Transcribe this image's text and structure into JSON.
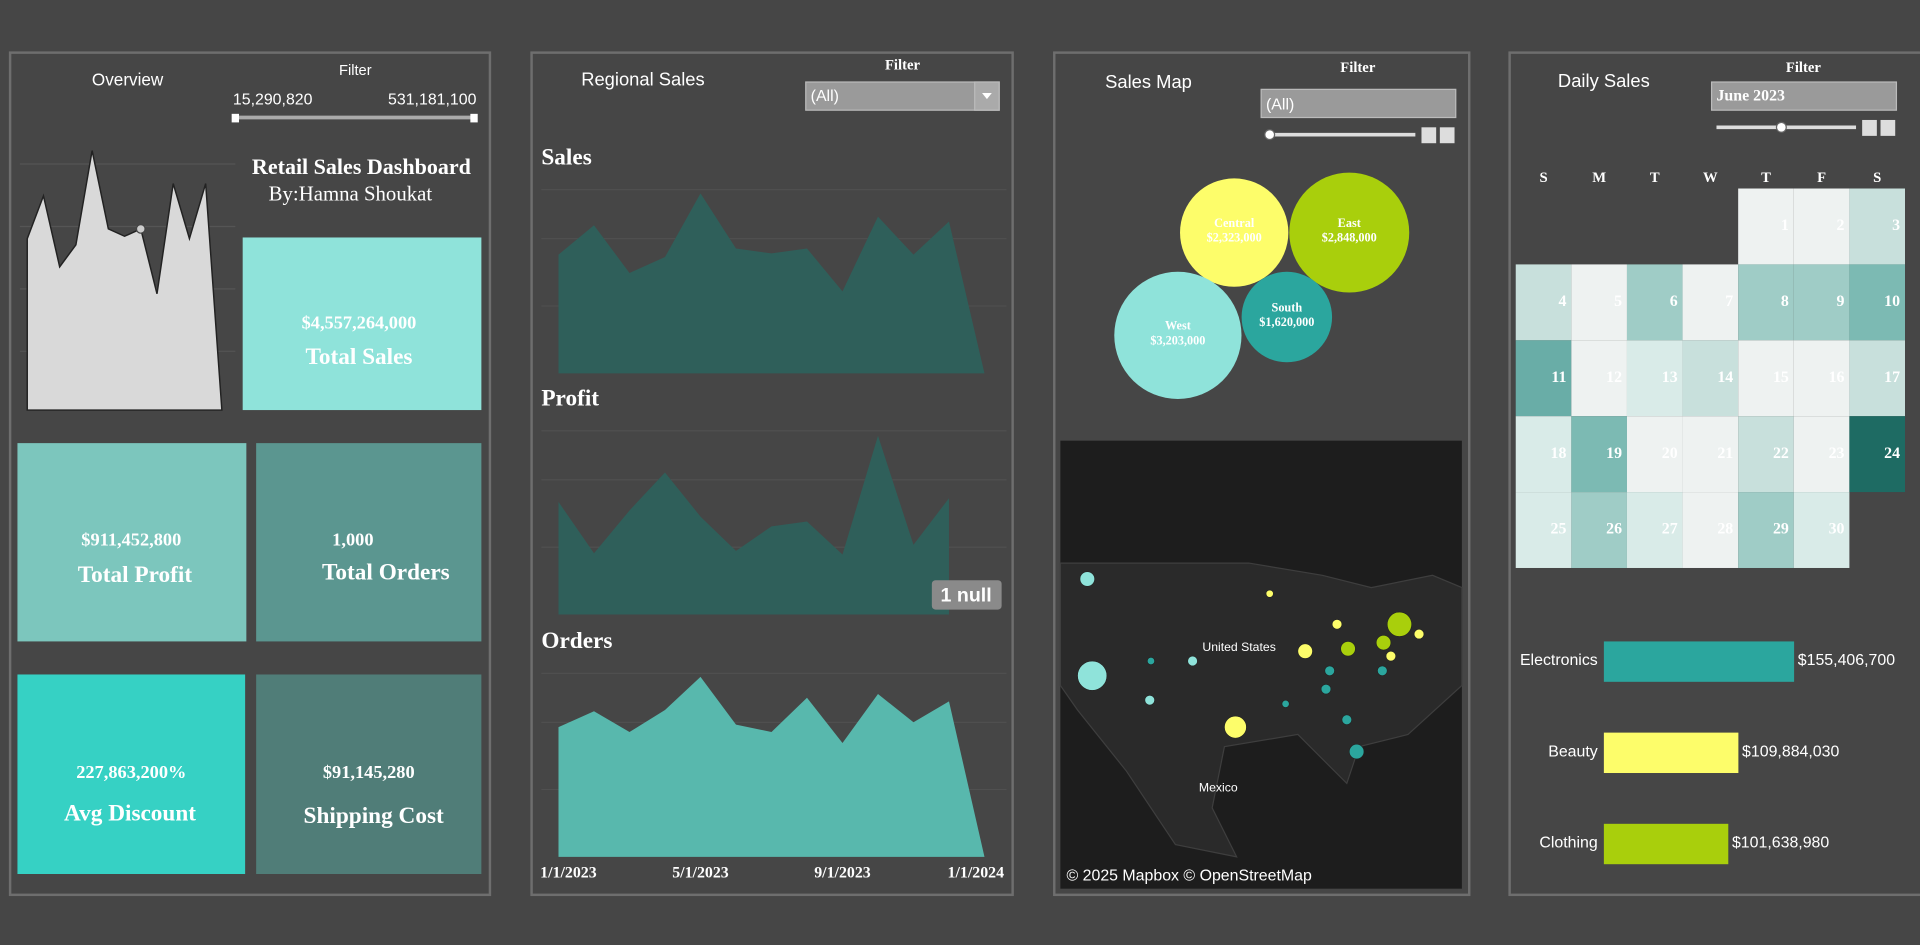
{
  "overview": {
    "title": "Overview",
    "filter_label": "Filter",
    "filter_min": "15,290,820",
    "filter_max": "531,181,100",
    "trend": [
      140,
      175,
      117,
      135,
      212,
      148,
      142,
      148,
      95,
      185,
      140,
      185,
      0
    ],
    "dashboard_title": "Retail Sales Dashboard",
    "author": "By:Hamna Shoukat",
    "kpis": [
      {
        "value": "$4,557,264,000",
        "label": "Total Sales",
        "color": "#8fe3da"
      },
      {
        "value": "$911,452,800",
        "label": "Total Profit",
        "color": "#7cc6bd"
      },
      {
        "value": "1,000",
        "label": "Total Orders",
        "color": "#5b9690"
      },
      {
        "value": "227,863,200%",
        "label": "Avg Discount",
        "color": "#36d1c4"
      },
      {
        "value": "$91,145,280",
        "label": "Shipping Cost",
        "color": "#507d78"
      }
    ]
  },
  "regional_sales": {
    "title": "Regional Sales",
    "filter_label": "Filter",
    "filter_value": "(All)",
    "categories": [
      "1/1/2023",
      null,
      null,
      null,
      "5/1/2023",
      null,
      null,
      null,
      "9/1/2023",
      null,
      null,
      null,
      "1/1/2024"
    ],
    "charts": [
      {
        "name": "Sales",
        "color": "#2f5f5a",
        "values": [
          97,
          121,
          82,
          95,
          147,
          102,
          98,
          102,
          67,
          128,
          97,
          124,
          0
        ]
      },
      {
        "name": "Profit",
        "color": "#2f5f5a",
        "values": [
          92,
          50,
          85,
          116,
          80,
          52,
          72,
          76,
          49,
          146,
          57,
          95,
          null
        ],
        "null_label": "1 null"
      },
      {
        "name": "Orders",
        "color": "#58b8ad",
        "values": [
          106,
          119,
          102,
          120,
          147,
          108,
          102,
          130,
          93,
          133,
          110,
          127,
          0
        ]
      }
    ]
  },
  "sales_map": {
    "title": "Sales Map",
    "filter_label": "Filter",
    "filter_value": "(All)",
    "regions": [
      {
        "name": "Central",
        "value": 2323000,
        "value_label": "$2,323,000",
        "color": "#fdfd6a"
      },
      {
        "name": "East",
        "value": 2848000,
        "value_label": "$2,848,000",
        "color": "#a9cf0c"
      },
      {
        "name": "West",
        "value": 3203000,
        "value_label": "$3,203,000",
        "color": "#8fe3da"
      },
      {
        "name": "South",
        "value": 1620000,
        "value_label": "$1,620,000",
        "color": "#2ba69e"
      }
    ],
    "map_labels": [
      "United States",
      "Mexico"
    ],
    "attribution": "© 2025 Mapbox © OpenStreetMap"
  },
  "daily_sales": {
    "title": "Daily Sales",
    "filter_label": "Filter",
    "month": "June 2023",
    "weekdays": [
      "S",
      "M",
      "T",
      "W",
      "T",
      "F",
      "S"
    ],
    "days": [
      {
        "day": 1,
        "color": "#eef2f1"
      },
      {
        "day": 2,
        "color": "#eef2f1"
      },
      {
        "day": 3,
        "color": "#c8e0dc"
      },
      {
        "day": 4,
        "color": "#c8e0dc"
      },
      {
        "day": 5,
        "color": "#eef2f1"
      },
      {
        "day": 6,
        "color": "#9fccc6"
      },
      {
        "day": 7,
        "color": "#eef2f1"
      },
      {
        "day": 8,
        "color": "#9fccc6"
      },
      {
        "day": 9,
        "color": "#9fccc6"
      },
      {
        "day": 10,
        "color": "#7cbab3"
      },
      {
        "day": 11,
        "color": "#69ada7"
      },
      {
        "day": 12,
        "color": "#eef2f1"
      },
      {
        "day": 13,
        "color": "#d9ebe8"
      },
      {
        "day": 14,
        "color": "#c8e0dc"
      },
      {
        "day": 15,
        "color": "#eef2f1"
      },
      {
        "day": 16,
        "color": "#eef2f1"
      },
      {
        "day": 17,
        "color": "#c8e0dc"
      },
      {
        "day": 18,
        "color": "#d9ebe8"
      },
      {
        "day": 19,
        "color": "#7cbab3"
      },
      {
        "day": 20,
        "color": "#eef2f1"
      },
      {
        "day": 21,
        "color": "#eef2f1"
      },
      {
        "day": 22,
        "color": "#c8e0dc"
      },
      {
        "day": 23,
        "color": "#eef2f1"
      },
      {
        "day": 24,
        "color": "#1e6b63"
      },
      {
        "day": 25,
        "color": "#d9ebe8"
      },
      {
        "day": 26,
        "color": "#9fccc6"
      },
      {
        "day": 27,
        "color": "#d9ebe8"
      },
      {
        "day": 28,
        "color": "#eef2f1"
      },
      {
        "day": 29,
        "color": "#9fccc6"
      },
      {
        "day": 30,
        "color": "#d9ebe8"
      }
    ],
    "categories": {
      "names": [
        "Electronics",
        "Beauty",
        "Clothing"
      ],
      "values": [
        155406700,
        109884030,
        101638980
      ],
      "value_labels": [
        "$155,406,700",
        "$109,884,030",
        "$101,638,980"
      ],
      "colors": [
        "#2ba69e",
        "#fdfd6a",
        "#a9cf0c"
      ]
    }
  }
}
